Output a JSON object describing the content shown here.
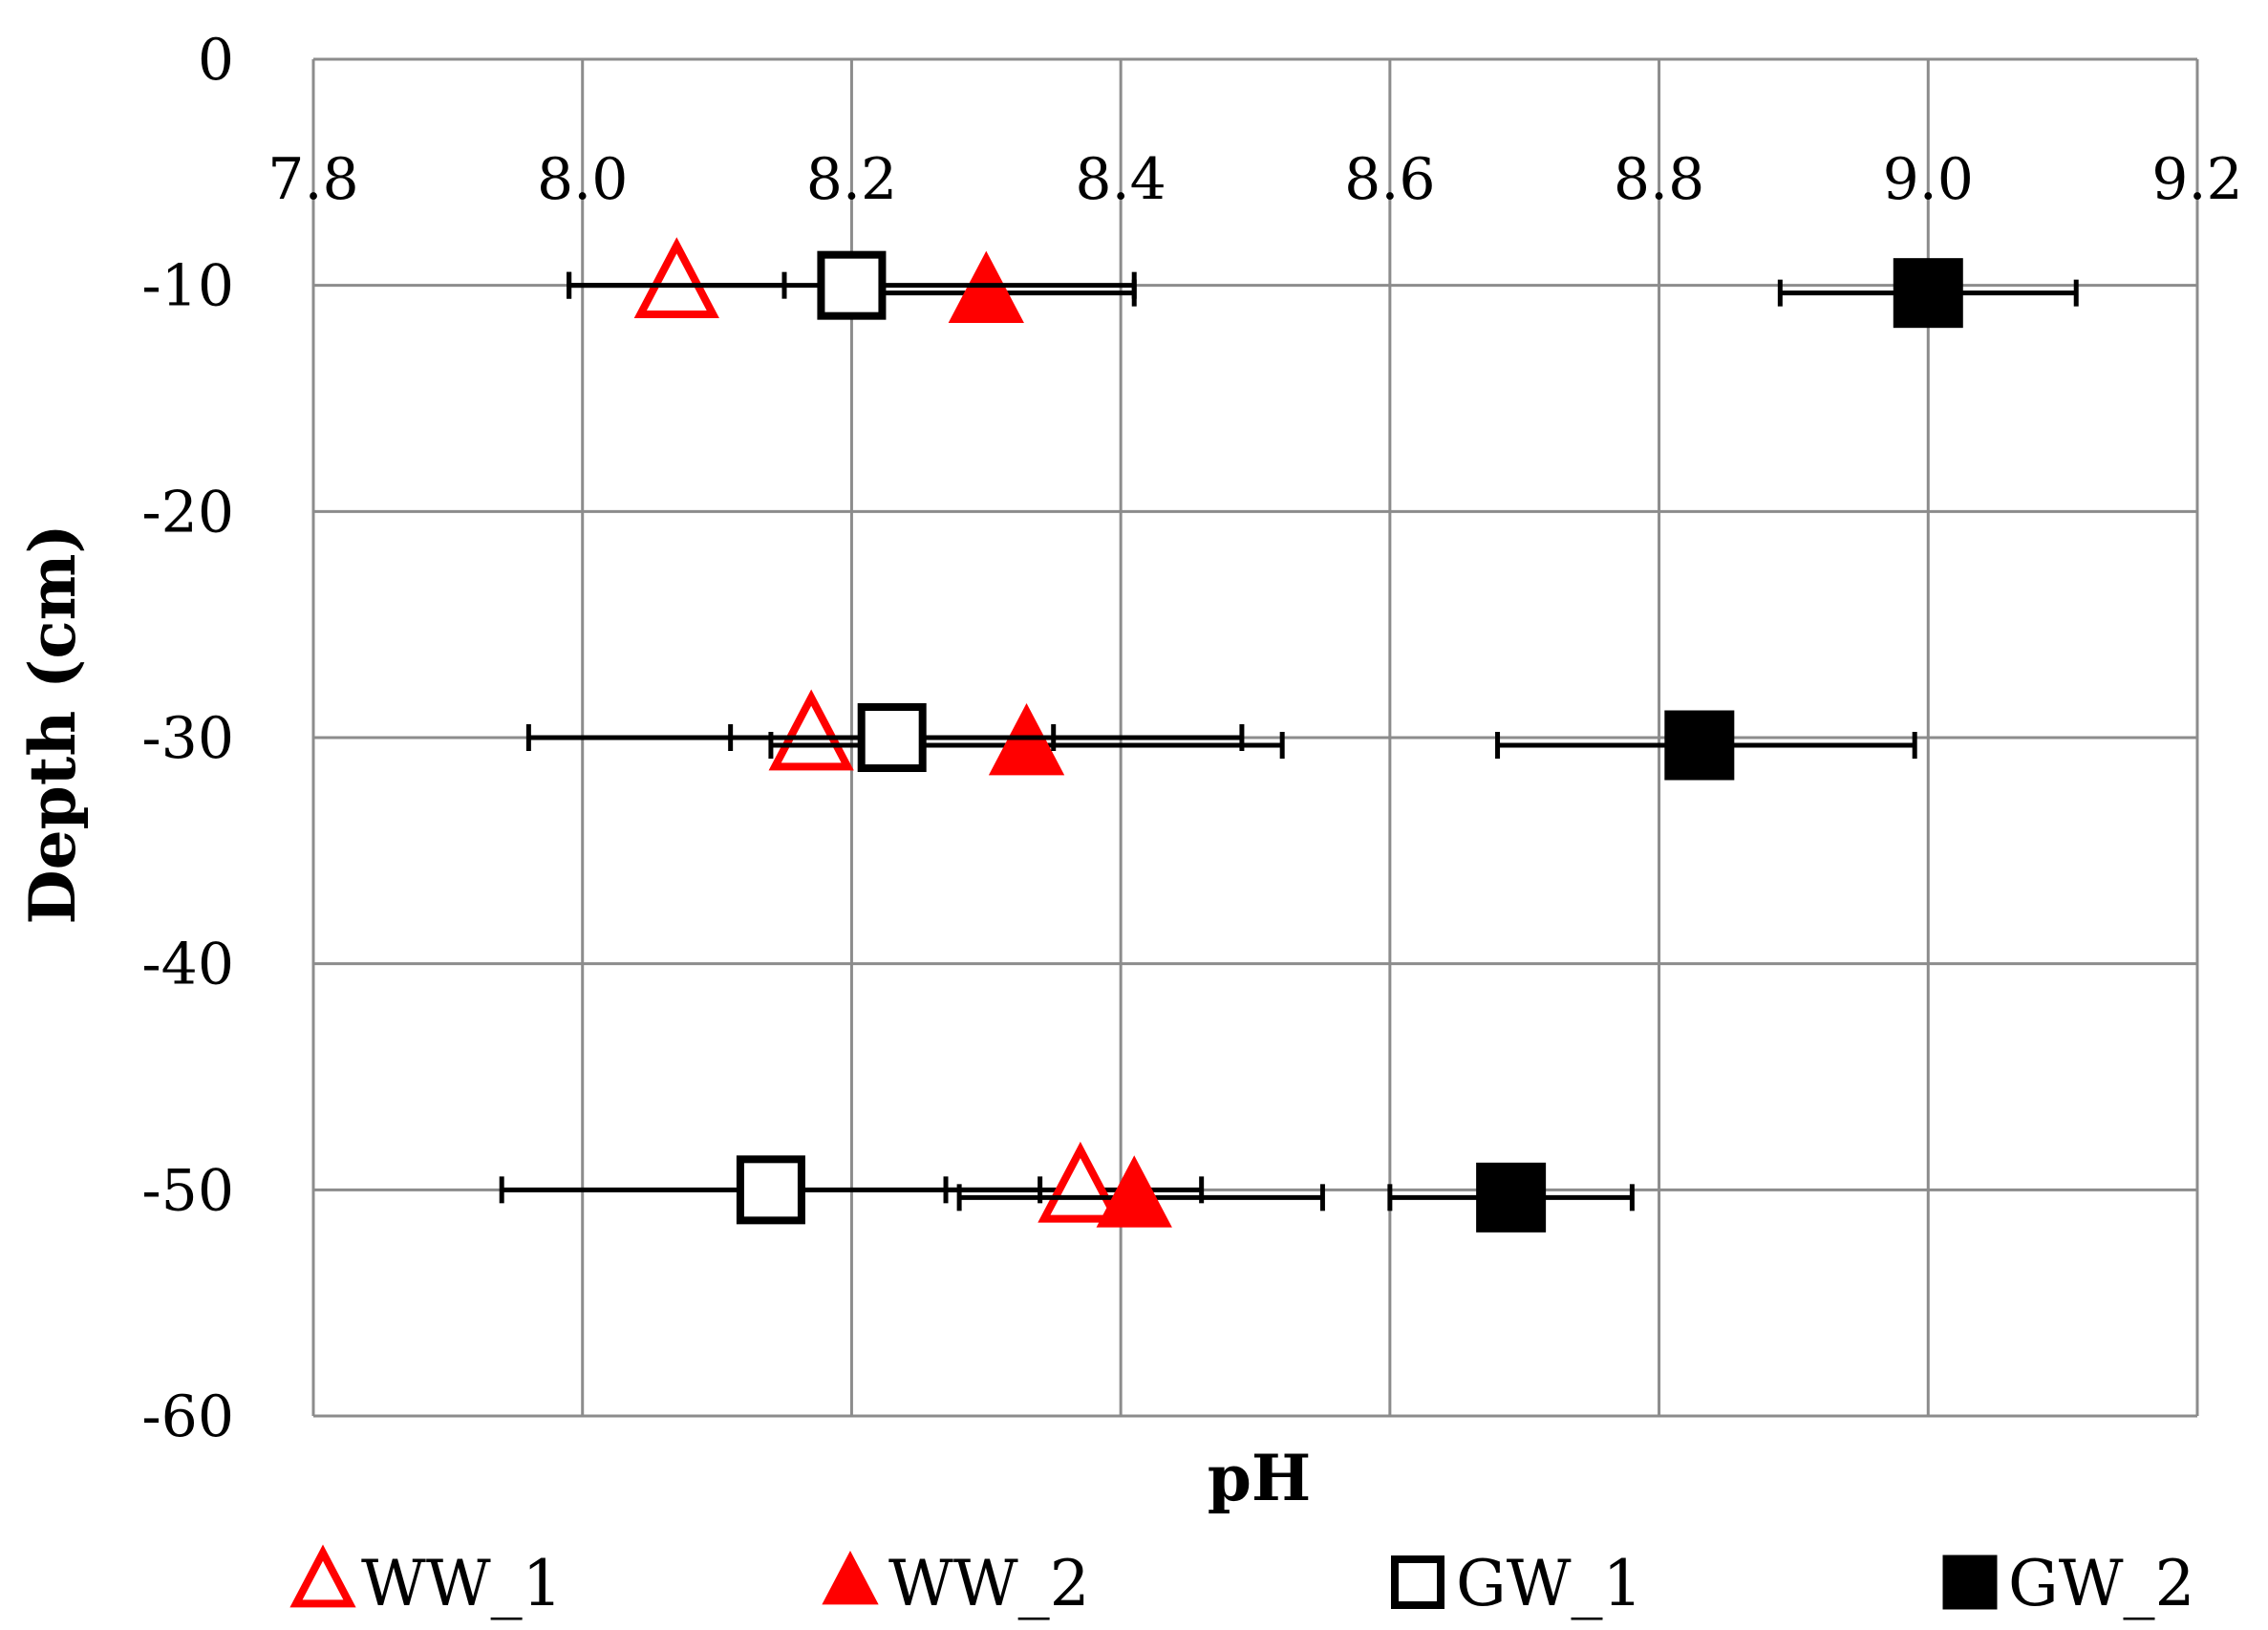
{
  "chart_data": {
    "type": "scatter",
    "xlabel": "pH",
    "ylabel": "Depth (cm)",
    "xlim": [
      7.8,
      9.2
    ],
    "ylim": [
      -60,
      0
    ],
    "x_ticks": [
      "7.8",
      "8.0",
      "8.2",
      "8.4",
      "8.6",
      "8.8",
      "9.0",
      "9.2"
    ],
    "y_ticks": [
      "0",
      "-10",
      "-20",
      "-30",
      "-40",
      "-50",
      "-60"
    ],
    "x_axis_position": "top",
    "grid": true,
    "legend_position": "bottom",
    "series": [
      {
        "name": "WW_1",
        "marker": "triangle-open",
        "color": "#ff0000",
        "points": [
          {
            "x": 8.07,
            "y": -10,
            "xerr_low": 7.99,
            "xerr_high": 8.15
          },
          {
            "x": 8.17,
            "y": -30,
            "xerr_low": 7.96,
            "xerr_high": 8.49
          },
          {
            "x": 8.37,
            "y": -50,
            "xerr_low": 8.27,
            "xerr_high": 8.46
          }
        ]
      },
      {
        "name": "WW_2",
        "marker": "triangle-filled",
        "color": "#ff0000",
        "points": [
          {
            "x": 8.3,
            "y": -10,
            "xerr_low": 8.19,
            "xerr_high": 8.41
          },
          {
            "x": 8.33,
            "y": -30,
            "xerr_low": 8.14,
            "xerr_high": 8.52
          },
          {
            "x": 8.41,
            "y": -50,
            "xerr_low": 8.28,
            "xerr_high": 8.55
          }
        ]
      },
      {
        "name": "GW_1",
        "marker": "square-open",
        "color": "#000000",
        "points": [
          {
            "x": 8.2,
            "y": -10,
            "xerr_low": 7.99,
            "xerr_high": 8.41
          },
          {
            "x": 8.23,
            "y": -30,
            "xerr_low": 8.11,
            "xerr_high": 8.35
          },
          {
            "x": 8.14,
            "y": -50,
            "xerr_low": 7.94,
            "xerr_high": 8.34
          }
        ]
      },
      {
        "name": "GW_2",
        "marker": "square-filled",
        "color": "#000000",
        "points": [
          {
            "x": 9.0,
            "y": -10,
            "xerr_low": 8.89,
            "xerr_high": 9.11
          },
          {
            "x": 8.83,
            "y": -30,
            "xerr_low": 8.68,
            "xerr_high": 8.99
          },
          {
            "x": 8.69,
            "y": -50,
            "xerr_low": 8.6,
            "xerr_high": 8.78
          }
        ]
      }
    ]
  }
}
